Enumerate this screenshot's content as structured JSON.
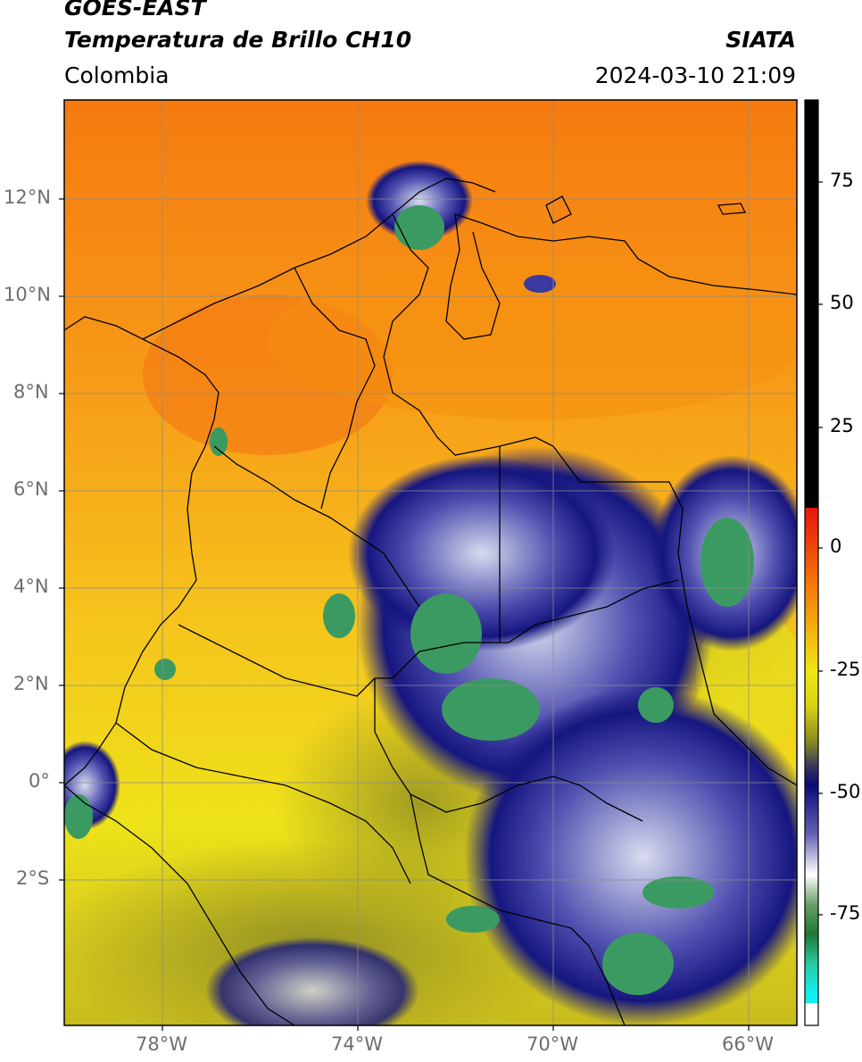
{
  "header": {
    "satellite": "GOES-EAST",
    "product": "Temperatura de Brillo CH10",
    "organization": "SIATA",
    "region": "Colombia",
    "datetime": "2024-03-10 21:09"
  },
  "map": {
    "lat_range": [
      -5,
      14
    ],
    "lon_range": [
      -80,
      -65
    ],
    "lat_ticks": [
      "12°N",
      "10°N",
      "8°N",
      "6°N",
      "4°N",
      "2°N",
      "0°",
      "2°S"
    ],
    "lon_ticks": [
      "78°W",
      "74°W",
      "70°W",
      "66°W"
    ],
    "gridlines": true
  },
  "colorbar": {
    "ticks": [
      "75",
      "50",
      "25",
      "0",
      "-25",
      "-50",
      "-75"
    ],
    "colors": {
      "warm_black": "#000000",
      "red": "#e8140c",
      "orange": "#f5820a",
      "yellow": "#f0e614",
      "olive": "#8c8c1e",
      "navy": "#0a0a78",
      "white": "#ffffff",
      "green": "#1e7832",
      "teal": "#28c8a0",
      "cyan": "#14f0f0"
    }
  }
}
